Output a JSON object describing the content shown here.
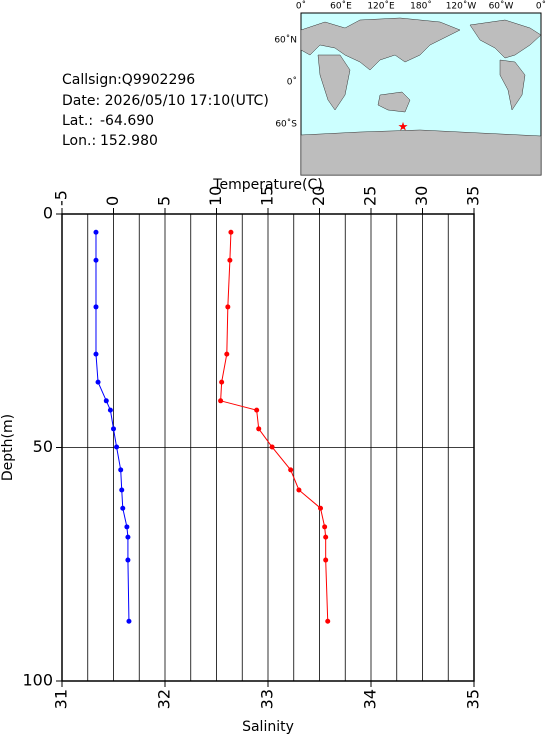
{
  "info": {
    "callsign": "Callsign:Q9902296",
    "date": "Date:  2026/05/10 17:10(UTC)",
    "lat_label": "Lat.:",
    "lat": {
      "value": -64.69,
      "label": "-64.690"
    },
    "lon_label": "Lon.:",
    "lon": {
      "value": 152.98,
      "label": "152.980"
    }
  },
  "map": {
    "lon_labels": [
      "0˚",
      "60˚E",
      "120˚E",
      "180˚",
      "120˚W",
      "60˚W",
      "0˚"
    ],
    "lat_labels": [
      "60˚N",
      "0˚",
      "60˚S"
    ]
  },
  "chart_data": {
    "type": "profile",
    "xlabel_top": "Temperature(C)",
    "xlabel_bottom": "Salinity",
    "ylabel": "Depth(m)",
    "y": [
      3.9,
      9.9,
      19.9,
      30,
      36,
      40,
      42,
      46,
      49.9,
      54.8,
      59.1,
      63,
      67,
      69.2,
      74.1,
      87.2
    ],
    "ylim": [
      0,
      100
    ],
    "yticks": [
      0,
      50,
      100
    ],
    "ygrid": [
      50
    ],
    "xlim_top": [
      -5,
      35
    ],
    "xticks_top": [
      -5,
      0,
      5,
      10,
      15,
      20,
      25,
      30,
      35
    ],
    "xgrid_top": [
      -2.5,
      0,
      2.5,
      5,
      7.5,
      10,
      12.5,
      15,
      17.5,
      20,
      22.5,
      25,
      27.5,
      30,
      32.5
    ],
    "xlim_bottom": [
      31,
      35
    ],
    "xticks_bottom": [
      31,
      32,
      33,
      34,
      35
    ],
    "series": [
      {
        "name": "Temperature",
        "color": "#ff0000",
        "axis": "top",
        "values": [
          11.4,
          11.3,
          11.1,
          11.0,
          10.5,
          10.4,
          13.9,
          14.1,
          15.4,
          17.2,
          18.0,
          20.1,
          20.5,
          20.6,
          20.6,
          20.8
        ]
      },
      {
        "name": "Salinity",
        "color": "#0000ff",
        "axis": "bottom",
        "values": [
          31.33,
          31.33,
          31.33,
          31.33,
          31.35,
          31.43,
          31.47,
          31.5,
          31.53,
          31.57,
          31.58,
          31.59,
          31.63,
          31.64,
          31.64,
          31.65
        ]
      }
    ]
  }
}
